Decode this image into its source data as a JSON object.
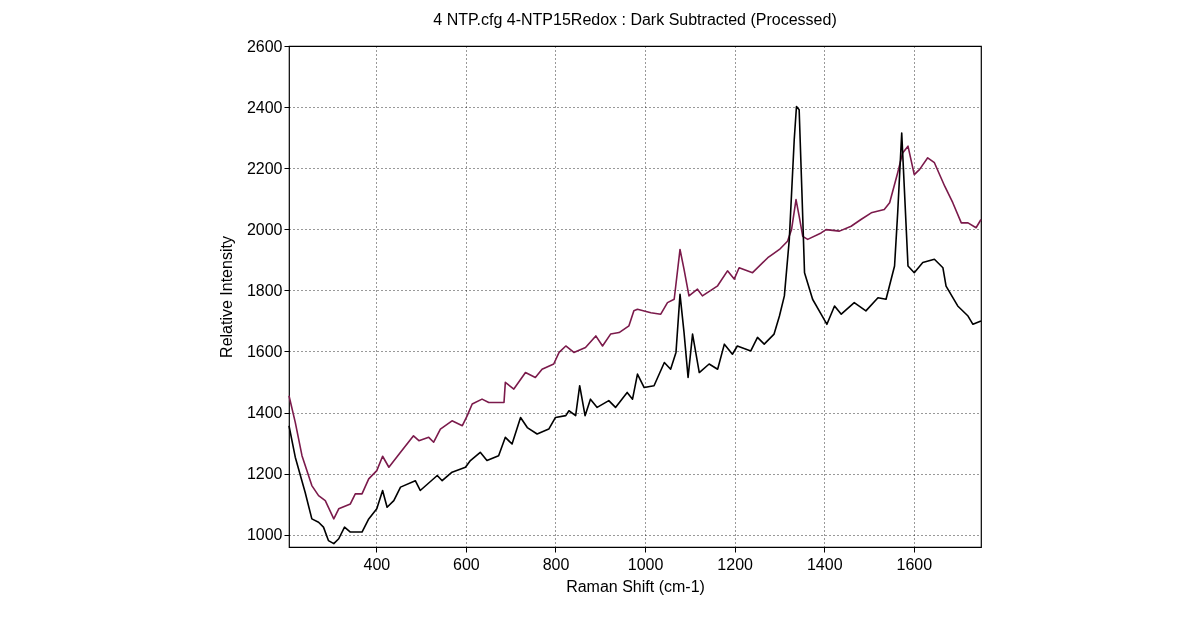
{
  "chart_data": {
    "type": "line",
    "title": "4 NTP.cfg   4-NTP15Redox : Dark Subtracted (Processed)",
    "xlabel": "Raman Shift (cm-1)",
    "ylabel": "Relative Intensity",
    "xlim": [
      205,
      1750
    ],
    "xticks": [
      400,
      600,
      800,
      1000,
      1200,
      1400,
      1600
    ],
    "ylim": [
      960,
      2600
    ],
    "yticks": [
      1000,
      1200,
      1400,
      1600,
      1800,
      2000,
      2200,
      2400,
      2600
    ],
    "grid": true,
    "marker": "none",
    "line_style": "solid",
    "series": [
      {
        "color": "#7b1a4b",
        "x": [
          205,
          219,
          234,
          256,
          271,
          286,
          305,
          316,
          342,
          353,
          368,
          383,
          401,
          414,
          428,
          454,
          483,
          495,
          517,
          528,
          543,
          569,
          592,
          603,
          614,
          636,
          651,
          685,
          688,
          707,
          733,
          755,
          770,
          796,
          808,
          823,
          841,
          867,
          890,
          905,
          923,
          942,
          964,
          975,
          983,
          1013,
          1035,
          1050,
          1065,
          1078,
          1087,
          1098,
          1117,
          1128,
          1162,
          1184,
          1199,
          1210,
          1240,
          1274,
          1300,
          1318,
          1327,
          1337,
          1344,
          1352,
          1363,
          1393,
          1404,
          1434,
          1460,
          1482,
          1505,
          1534,
          1546,
          1564,
          1575,
          1587,
          1601,
          1613,
          1631,
          1646,
          1669,
          1687,
          1706,
          1721,
          1739,
          1750
        ],
        "values": [
          1455,
          1368,
          1259,
          1161,
          1128,
          1112,
          1052,
          1085,
          1101,
          1134,
          1134,
          1183,
          1210,
          1257,
          1221,
          1270,
          1324,
          1308,
          1319,
          1303,
          1346,
          1373,
          1357,
          1390,
          1428,
          1444,
          1433,
          1433,
          1499,
          1477,
          1531,
          1515,
          1542,
          1559,
          1597,
          1618,
          1597,
          1613,
          1651,
          1618,
          1657,
          1662,
          1684,
          1733,
          1738,
          1727,
          1722,
          1760,
          1771,
          1934,
          1869,
          1782,
          1804,
          1782,
          1815,
          1864,
          1837,
          1874,
          1858,
          1907,
          1934,
          1961,
          1999,
          2097,
          2043,
          1977,
          1967,
          1988,
          1999,
          1994,
          2010,
          2032,
          2054,
          2065,
          2087,
          2185,
          2250,
          2272,
          2179,
          2196,
          2234,
          2218,
          2141,
          2087,
          2021,
          2021,
          2005,
          2032
        ]
      },
      {
        "color": "#000000",
        "x": [
          205,
          219,
          241,
          256,
          271,
          282,
          293,
          305,
          316,
          329,
          342,
          368,
          383,
          401,
          414,
          424,
          439,
          454,
          487,
          498,
          536,
          547,
          569,
          599,
          610,
          632,
          647,
          673,
          688,
          703,
          722,
          737,
          759,
          785,
          800,
          823,
          830,
          845,
          854,
          866,
          878,
          893,
          919,
          934,
          960,
          972,
          983,
          998,
          1020,
          1043,
          1057,
          1069,
          1078,
          1087,
          1096,
          1106,
          1121,
          1143,
          1162,
          1177,
          1195,
          1206,
          1236,
          1251,
          1266,
          1288,
          1300,
          1311,
          1322,
          1333,
          1338,
          1344,
          1350,
          1356,
          1374,
          1393,
          1406,
          1423,
          1438,
          1467,
          1493,
          1520,
          1538,
          1557,
          1564,
          1573,
          1579,
          1587,
          1601,
          1620,
          1646,
          1665,
          1672,
          1698,
          1721,
          1732,
          1750
        ],
        "values": [
          1357,
          1254,
          1139,
          1052,
          1041,
          1025,
          981,
          971,
          987,
          1025,
          1009,
          1009,
          1052,
          1085,
          1145,
          1090,
          1112,
          1156,
          1177,
          1145,
          1194,
          1177,
          1205,
          1221,
          1243,
          1270,
          1243,
          1259,
          1319,
          1297,
          1384,
          1351,
          1330,
          1346,
          1384,
          1390,
          1406,
          1390,
          1488,
          1390,
          1444,
          1417,
          1439,
          1417,
          1466,
          1444,
          1526,
          1482,
          1488,
          1564,
          1542,
          1597,
          1787,
          1662,
          1515,
          1657,
          1531,
          1559,
          1542,
          1624,
          1591,
          1618,
          1602,
          1646,
          1624,
          1657,
          1716,
          1782,
          1967,
          2293,
          2402,
          2391,
          2129,
          1858,
          1771,
          1722,
          1689,
          1749,
          1722,
          1760,
          1733,
          1776,
          1771,
          1880,
          2054,
          2315,
          2129,
          1880,
          1858,
          1891,
          1902,
          1874,
          1814,
          1749,
          1716,
          1689,
          1700
        ]
      }
    ]
  }
}
